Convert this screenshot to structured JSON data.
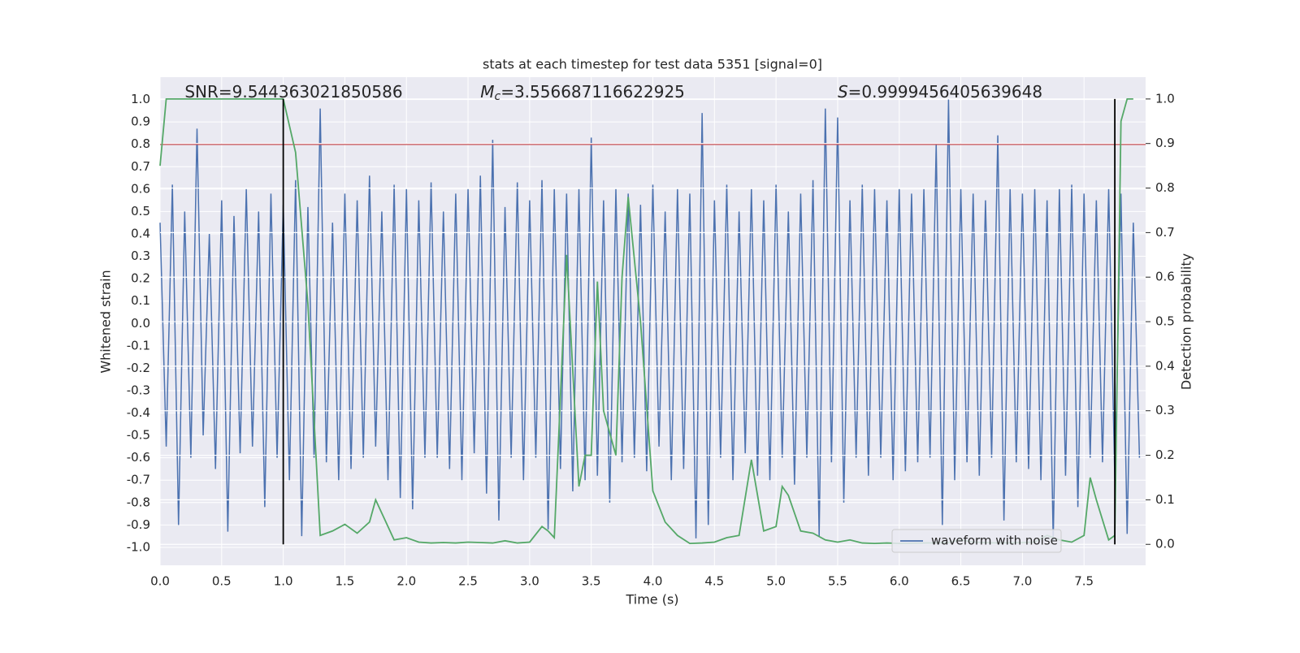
{
  "chart_data": {
    "type": "line",
    "title": "stats at each timestep for test data 5351 [signal=0]",
    "xlabel": "Time (s)",
    "ylabel": "Whitened strain",
    "y2label": "Detection probability",
    "xlim": [
      0,
      8.0
    ],
    "ylim": [
      -1.08,
      1.1
    ],
    "y2lim": [
      -0.047,
      1.049
    ],
    "xticks": [
      {
        "value": 0,
        "label": "0.0"
      },
      0.5,
      {
        "value": 1,
        "label": "1.0"
      },
      1.5,
      {
        "value": 2,
        "label": "2.0"
      },
      2.5,
      {
        "value": 3,
        "label": "3.0"
      },
      3.5,
      {
        "value": 4,
        "label": "4.0"
      },
      4.5,
      {
        "value": 5,
        "label": "5.0"
      },
      5.5,
      {
        "value": 6,
        "label": "6.0"
      },
      6.5,
      {
        "value": 7,
        "label": "7.0"
      },
      7.5
    ],
    "yticks": [
      {
        "value": 1,
        "label": "1.0"
      },
      0.9,
      0.8,
      0.7,
      0.6,
      0.5,
      0.4,
      0.3,
      0.2,
      0.1,
      {
        "value": 0,
        "label": "0.0"
      },
      -0.1,
      -0.2,
      -0.3,
      -0.4,
      -0.5,
      -0.6,
      -0.7,
      -0.8,
      -0.9,
      {
        "value": -1,
        "label": "-1.0"
      }
    ],
    "y2ticks": [
      {
        "value": 1,
        "label": "1.0"
      },
      0.9,
      0.8,
      0.7,
      0.6,
      0.5,
      0.4,
      0.3,
      0.2,
      0.1,
      {
        "value": 0,
        "label": "0.0"
      }
    ],
    "grid": true,
    "legend": "lower right",
    "series": [
      {
        "name": "waveform with noise",
        "color": "#4c72b0",
        "axis": "y",
        "x": [
          0.0,
          0.05,
          0.1,
          0.15,
          0.2,
          0.25,
          0.3,
          0.35,
          0.4,
          0.45,
          0.5,
          0.55,
          0.6,
          0.65,
          0.7,
          0.75,
          0.8,
          0.85,
          0.9,
          0.95,
          1.0,
          1.05,
          1.1,
          1.15,
          1.2,
          1.25,
          1.3,
          1.35,
          1.4,
          1.45,
          1.5,
          1.55,
          1.6,
          1.65,
          1.7,
          1.75,
          1.8,
          1.85,
          1.9,
          1.95,
          2.0,
          2.05,
          2.1,
          2.15,
          2.2,
          2.25,
          2.3,
          2.35,
          2.4,
          2.45,
          2.5,
          2.55,
          2.6,
          2.65,
          2.7,
          2.75,
          2.8,
          2.85,
          2.9,
          2.95,
          3.0,
          3.05,
          3.1,
          3.15,
          3.2,
          3.25,
          3.3,
          3.35,
          3.4,
          3.45,
          3.5,
          3.55,
          3.6,
          3.65,
          3.7,
          3.75,
          3.8,
          3.85,
          3.9,
          3.95,
          4.0,
          4.05,
          4.1,
          4.15,
          4.2,
          4.25,
          4.3,
          4.35,
          4.4,
          4.45,
          4.5,
          4.55,
          4.6,
          4.65,
          4.7,
          4.75,
          4.8,
          4.85,
          4.9,
          4.95,
          5.0,
          5.05,
          5.1,
          5.15,
          5.2,
          5.25,
          5.3,
          5.35,
          5.4,
          5.45,
          5.5,
          5.55,
          5.6,
          5.65,
          5.7,
          5.75,
          5.8,
          5.85,
          5.9,
          5.95,
          6.0,
          6.05,
          6.1,
          6.15,
          6.2,
          6.25,
          6.3,
          6.35,
          6.4,
          6.45,
          6.5,
          6.55,
          6.6,
          6.65,
          6.7,
          6.75,
          6.8,
          6.85,
          6.9,
          6.95,
          7.0,
          7.05,
          7.1,
          7.15,
          7.2,
          7.25,
          7.3,
          7.35,
          7.4,
          7.45,
          7.5,
          7.55,
          7.6,
          7.65,
          7.7,
          7.75,
          7.8,
          7.85,
          7.9,
          7.95
        ],
        "values": [
          0.45,
          -0.55,
          0.62,
          -0.9,
          0.5,
          -0.6,
          0.87,
          -0.5,
          0.4,
          -0.65,
          0.55,
          -0.93,
          0.48,
          -0.58,
          0.6,
          -0.55,
          0.5,
          -0.82,
          0.58,
          -0.6,
          0.53,
          -0.7,
          0.64,
          -0.95,
          0.52,
          -0.6,
          0.96,
          -0.62,
          0.45,
          -0.7,
          0.58,
          -0.65,
          0.55,
          -0.6,
          0.66,
          -0.55,
          0.5,
          -0.7,
          0.62,
          -0.78,
          0.6,
          -0.83,
          0.55,
          -0.6,
          0.63,
          -0.6,
          0.5,
          -0.65,
          0.58,
          -0.7,
          0.6,
          -0.58,
          0.66,
          -0.76,
          0.82,
          -0.88,
          0.52,
          -0.6,
          0.63,
          -0.7,
          0.55,
          -0.6,
          0.64,
          -0.92,
          0.6,
          -0.65,
          0.58,
          -0.75,
          0.6,
          -0.7,
          0.83,
          -0.68,
          0.55,
          -0.8,
          0.6,
          -0.62,
          0.58,
          -0.6,
          0.53,
          -0.66,
          0.62,
          -0.55,
          0.5,
          -0.7,
          0.6,
          -0.65,
          0.58,
          -0.96,
          0.94,
          -0.9,
          0.55,
          -0.6,
          0.62,
          -0.7,
          0.5,
          -0.58,
          0.6,
          -0.68,
          0.55,
          -0.7,
          0.62,
          -0.6,
          0.5,
          -0.72,
          0.58,
          -0.6,
          0.64,
          -0.95,
          0.96,
          -0.62,
          0.92,
          -0.8,
          0.55,
          -0.6,
          0.62,
          -0.68,
          0.6,
          -0.6,
          0.55,
          -0.7,
          0.6,
          -0.66,
          0.58,
          -0.62,
          0.6,
          -0.6,
          0.8,
          -0.9,
          1.0,
          -0.7,
          0.6,
          -0.62,
          0.58,
          -0.68,
          0.55,
          -0.6,
          0.84,
          -0.88,
          0.6,
          -0.62,
          0.58,
          -0.65,
          0.6,
          -0.7,
          0.55,
          -0.97,
          0.6,
          -0.68,
          0.62,
          -0.82,
          0.58,
          -0.6,
          0.55,
          -0.62,
          0.6,
          -0.7,
          0.58,
          -0.94,
          0.45,
          -0.6
        ]
      },
      {
        "color": "#55a868",
        "axis": "y2",
        "x": [
          0.0,
          0.05,
          0.1,
          0.2,
          0.3,
          0.4,
          0.5,
          0.6,
          0.7,
          0.8,
          0.9,
          1.0,
          1.1,
          1.2,
          1.3,
          1.4,
          1.5,
          1.6,
          1.7,
          1.75,
          1.8,
          1.9,
          2.0,
          2.1,
          2.2,
          2.3,
          2.4,
          2.5,
          2.6,
          2.7,
          2.8,
          2.9,
          3.0,
          3.1,
          3.15,
          3.2,
          3.3,
          3.4,
          3.45,
          3.5,
          3.55,
          3.6,
          3.7,
          3.75,
          3.8,
          3.9,
          4.0,
          4.1,
          4.2,
          4.3,
          4.4,
          4.5,
          4.6,
          4.7,
          4.8,
          4.9,
          5.0,
          5.05,
          5.1,
          5.2,
          5.3,
          5.4,
          5.5,
          5.6,
          5.7,
          5.8,
          5.9,
          6.0,
          6.2,
          6.4,
          6.5,
          6.6,
          6.8,
          7.0,
          7.1,
          7.2,
          7.3,
          7.4,
          7.5,
          7.55,
          7.6,
          7.7,
          7.75,
          7.8,
          7.85,
          7.9
        ],
        "values": [
          0.85,
          1.0,
          1.0,
          1.0,
          1.0,
          1.0,
          1.0,
          1.0,
          1.0,
          1.0,
          1.0,
          1.0,
          0.88,
          0.54,
          0.02,
          0.03,
          0.045,
          0.025,
          0.05,
          0.1,
          0.07,
          0.01,
          0.015,
          0.005,
          0.003,
          0.004,
          0.003,
          0.005,
          0.004,
          0.003,
          0.008,
          0.003,
          0.005,
          0.04,
          0.03,
          0.015,
          0.65,
          0.13,
          0.2,
          0.2,
          0.59,
          0.3,
          0.2,
          0.6,
          0.78,
          0.5,
          0.12,
          0.05,
          0.02,
          0.002,
          0.003,
          0.005,
          0.015,
          0.02,
          0.19,
          0.03,
          0.04,
          0.13,
          0.11,
          0.03,
          0.025,
          0.01,
          0.005,
          0.01,
          0.003,
          0.002,
          0.003,
          0.002,
          0.003,
          0.004,
          0.01,
          0.005,
          0.003,
          0.004,
          0.005,
          0.02,
          0.01,
          0.005,
          0.02,
          0.15,
          0.1,
          0.01,
          0.02,
          0.95,
          1.0,
          1.0
        ]
      }
    ],
    "hlines": [
      {
        "value": 0.8,
        "color": "#c44e52"
      }
    ],
    "vlines": {
      "x": [
        1.0,
        7.75
      ],
      "y2range": [
        0,
        1
      ],
      "color": "#000000"
    },
    "annotations": [
      {
        "text": "SNR=9.544363021850586",
        "x": 0.2
      },
      {
        "symbol": "M",
        "subscript": "c",
        "text": "=3.556687116622925",
        "x": 2.6
      },
      {
        "symbol": "S",
        "text": "=0.9999456405639648",
        "x": 5.5
      }
    ]
  }
}
